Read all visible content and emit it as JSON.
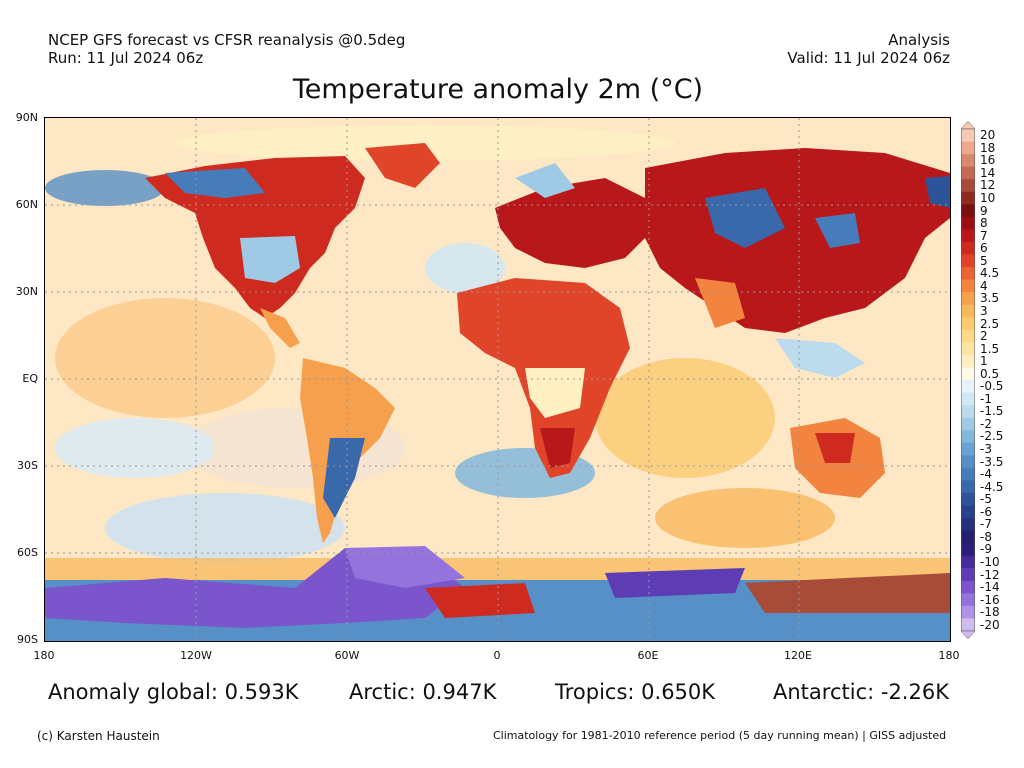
{
  "header": {
    "left_line1": "NCEP GFS forecast vs CFSR reanalysis @0.5deg",
    "left_line2": "Run: 11 Jul 2024 06z",
    "right_line1": "Analysis",
    "right_line2": "Valid: 11 Jul 2024 06z"
  },
  "map": {
    "title": "Temperature anomaly 2m (°C)",
    "lat_labels": [
      "90N",
      "60N",
      "30N",
      "EQ",
      "30S",
      "60S",
      "90S"
    ],
    "lon_labels": [
      "180",
      "120W",
      "60W",
      "0",
      "60E",
      "120E",
      "180"
    ]
  },
  "colorbar": {
    "labels": [
      "20",
      "18",
      "16",
      "14",
      "12",
      "10",
      "9",
      "8",
      "7",
      "6",
      "5",
      "4.5",
      "4",
      "3.5",
      "3",
      "2.5",
      "2",
      "1.5",
      "1",
      "0.5",
      "-0.5",
      "-1",
      "-1.5",
      "-2",
      "-2.5",
      "-3",
      "-3.5",
      "-4",
      "-4.5",
      "-5",
      "-6",
      "-7",
      "-8",
      "-9",
      "-10",
      "-12",
      "-14",
      "-16",
      "-18",
      "-20"
    ],
    "colors": [
      "#f6c8b4",
      "#eba88c",
      "#d98a6e",
      "#c46a52",
      "#a84c3a",
      "#8e2b1e",
      "#7a0f0f",
      "#9b0f12",
      "#b8181a",
      "#cf2a20",
      "#e0452a",
      "#ec6436",
      "#f3843f",
      "#f6a04d",
      "#f8b85c",
      "#fbcb71",
      "#fdd889",
      "#fee4a3",
      "#fff0c4",
      "#fff9e6",
      "#e8f3f8",
      "#d2e8f3",
      "#bcdcee",
      "#9fcae5",
      "#83b6dc",
      "#6aa3d2",
      "#5690c6",
      "#467cb9",
      "#3968ab",
      "#2d5399",
      "#26408a",
      "#23307b",
      "#241f6e",
      "#2d1c78",
      "#472a9a",
      "#5e3cb4",
      "#7a55cc",
      "#9573dc",
      "#b194e8",
      "#d0bcf3"
    ]
  },
  "stats": {
    "global": "Anomaly global: 0.593K",
    "arctic": "Arctic: 0.947K",
    "tropics": "Tropics: 0.650K",
    "antarctic": "Antarctic: -2.26K"
  },
  "footer": {
    "credit": "(c) Karsten Haustein",
    "climatology": "Climatology for 1981-2010 reference period (5 day running mean) | GISS adjusted"
  }
}
